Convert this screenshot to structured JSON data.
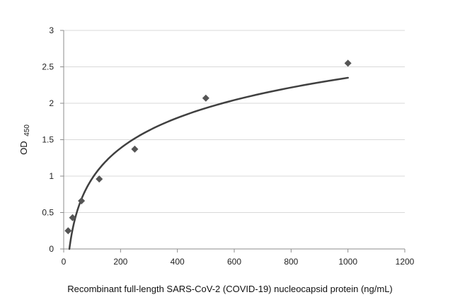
{
  "chart_data": {
    "type": "scatter",
    "title": "",
    "xlabel": "Recombinant full-length SARS-CoV-2 (COVID-19) nucleocapsid protein (ng/mL)",
    "ylabel": "OD",
    "ylabel_subscript": "450",
    "xlim": [
      0,
      1200
    ],
    "ylim": [
      0,
      3
    ],
    "x_ticks": [
      0,
      200,
      400,
      600,
      800,
      1000,
      1200
    ],
    "y_ticks": [
      0,
      0.5,
      1,
      1.5,
      2,
      2.5,
      3
    ],
    "x_tick_labels": [
      "0",
      "200",
      "400",
      "600",
      "800",
      "1000",
      "1200"
    ],
    "y_tick_labels": [
      "0",
      "0.5",
      "1",
      "1.5",
      "2",
      "2.5",
      "3"
    ],
    "grid": "horizontal",
    "legend": "none",
    "series": [
      {
        "marker": "diamond",
        "color": "#555555",
        "x": [
          15.6,
          31.25,
          62.5,
          125,
          250,
          500,
          1000
        ],
        "y": [
          0.25,
          0.43,
          0.66,
          0.96,
          1.37,
          2.07,
          2.55
        ]
      }
    ],
    "trendline": {
      "type": "logarithmic",
      "color": "#404040",
      "x_range": [
        20,
        1000
      ],
      "y_at_x_start": 0.0,
      "y_at_x_end": 2.35
    }
  }
}
